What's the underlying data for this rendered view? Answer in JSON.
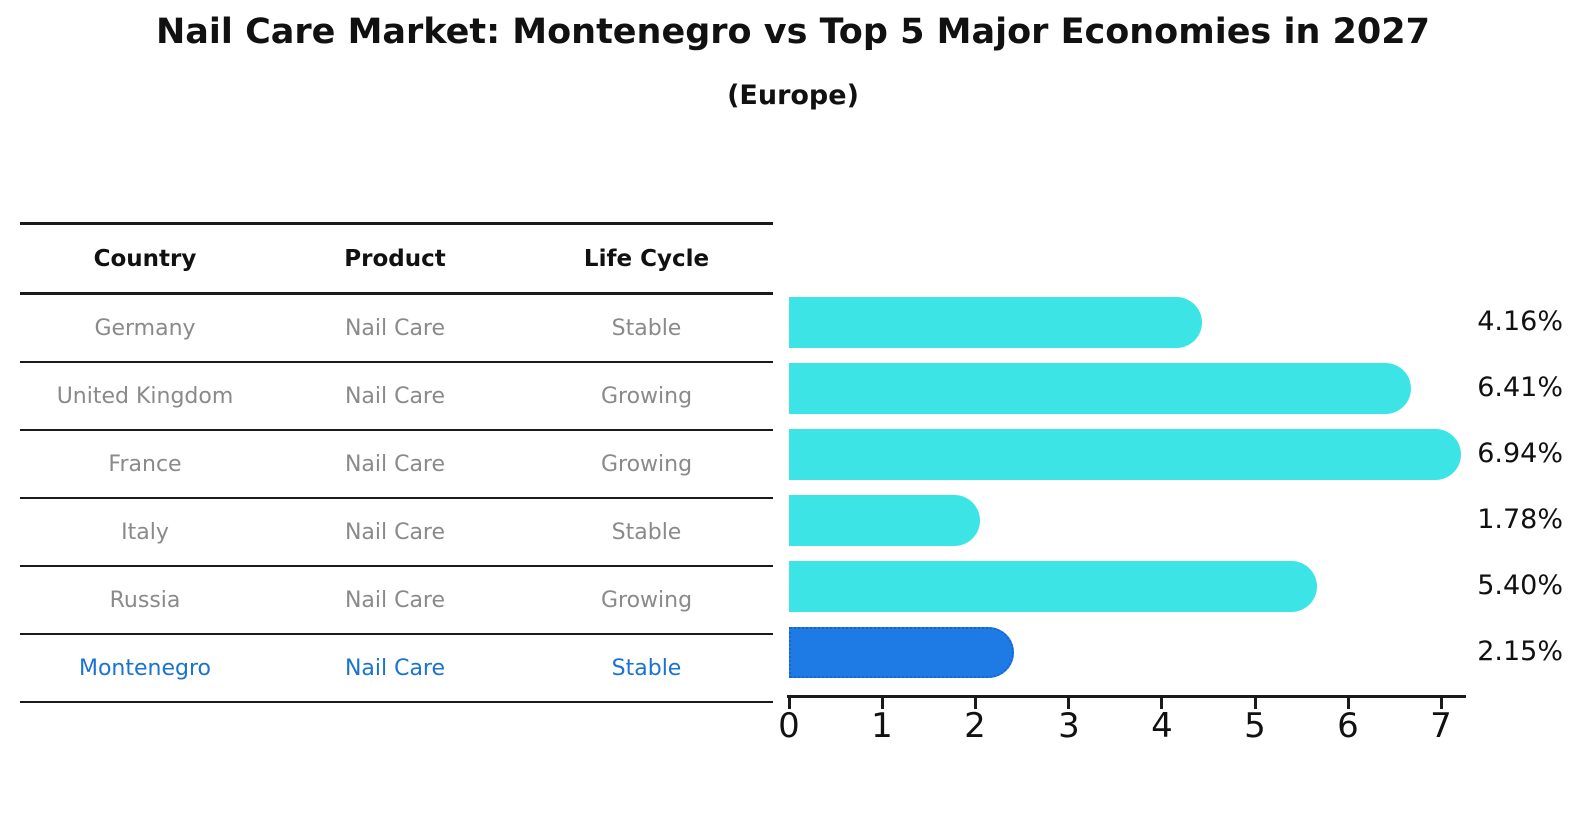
{
  "title": "Nail Care Market: Montenegro vs Top 5 Major Economies in 2027",
  "subtitle": "(Europe)",
  "table": {
    "columns": [
      "Country",
      "Product",
      "Life Cycle"
    ],
    "rows": [
      {
        "country": "Germany",
        "product": "Nail Care",
        "life_cycle": "Stable",
        "highlight": false
      },
      {
        "country": "United Kingdom",
        "product": "Nail Care",
        "life_cycle": "Growing",
        "highlight": false
      },
      {
        "country": "France",
        "product": "Nail Care",
        "life_cycle": "Growing",
        "highlight": false
      },
      {
        "country": "Italy",
        "product": "Nail Care",
        "life_cycle": "Stable",
        "highlight": false
      },
      {
        "country": "Russia",
        "product": "Nail Care",
        "life_cycle": "Growing",
        "highlight": false
      },
      {
        "country": "Montenegro",
        "product": "Nail Care",
        "life_cycle": "Stable",
        "highlight": true
      }
    ]
  },
  "chart_data": {
    "type": "bar",
    "orientation": "horizontal",
    "title": "Nail Care Market: Montenegro vs Top 5 Major Economies in 2027 (Europe)",
    "categories": [
      "Germany",
      "United Kingdom",
      "France",
      "Italy",
      "Russia",
      "Montenegro"
    ],
    "values": [
      4.16,
      6.41,
      6.94,
      1.78,
      5.4,
      2.15
    ],
    "value_labels": [
      "4.16%",
      "6.41%",
      "6.94%",
      "1.78%",
      "5.40%",
      "2.15%"
    ],
    "x_ticks": [
      "0",
      "1",
      "2",
      "3",
      "4",
      "5",
      "6",
      "7"
    ],
    "xlim": [
      0,
      7.3
    ],
    "grid": false,
    "legend": false,
    "highlight_category": "Montenegro",
    "bar_color": "#3de4e6",
    "highlight_bar_color": "#1e7ae5",
    "highlight_border_color": "#1565d0",
    "highlight_text_color": "#1a73d1",
    "label_color": "#111111",
    "row_text_color": "#8a8a8a"
  }
}
